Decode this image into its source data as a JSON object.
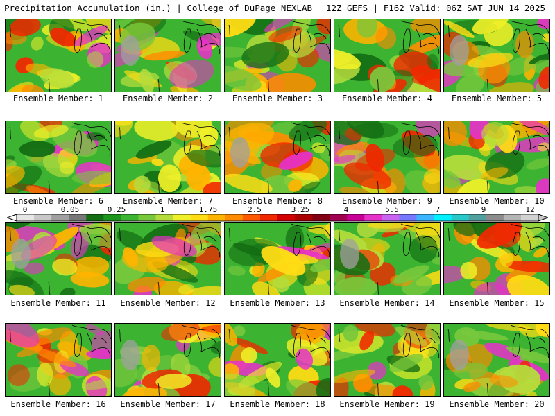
{
  "header": {
    "title": "Precipitation Accumulation (in.) | College of DuPage NEXLAB",
    "run_info": "12Z GEFS | F162 Valid: 06Z SAT JUN 14 2025"
  },
  "colorbar": {
    "tick_labels": [
      "0",
      "0.05",
      "0.25",
      "1",
      "1.75",
      "2.5",
      "3.25",
      "4",
      "5.5",
      "7",
      "9",
      "12"
    ],
    "colors": [
      "#e6e6e6",
      "#c8c8c8",
      "#a0a0a0",
      "#787878",
      "#146e14",
      "#1e961e",
      "#3cb432",
      "#78c83c",
      "#b4dc3c",
      "#f0f028",
      "#ffdc14",
      "#ffb400",
      "#ff8c00",
      "#ff5a00",
      "#f02800",
      "#d20000",
      "#aa0000",
      "#820014",
      "#a00050",
      "#c80096",
      "#e632c8",
      "#c864f0",
      "#7878ff",
      "#3cb4ff",
      "#00f0ff",
      "#28c8c8",
      "#50a0a0",
      "#8c8c8c",
      "#b4b4b4",
      "#d2d2d2"
    ]
  },
  "panels": [
    {
      "label": "Ensemble Member: 1"
    },
    {
      "label": "Ensemble Member: 2"
    },
    {
      "label": "Ensemble Member: 3"
    },
    {
      "label": "Ensemble Member: 4"
    },
    {
      "label": "Ensemble Member: 5"
    },
    {
      "label": "Ensemble Member: 6"
    },
    {
      "label": "Ensemble Member: 7"
    },
    {
      "label": "Ensemble Member: 8"
    },
    {
      "label": "Ensemble Member: 9"
    },
    {
      "label": "Ensemble Member: 10"
    },
    {
      "label": "Ensemble Member: 11"
    },
    {
      "label": "Ensemble Member: 12"
    },
    {
      "label": "Ensemble Member: 13"
    },
    {
      "label": "Ensemble Member: 14"
    },
    {
      "label": "Ensemble Member: 15"
    },
    {
      "label": "Ensemble Member: 16"
    },
    {
      "label": "Ensemble Member: 17"
    },
    {
      "label": "Ensemble Member: 18"
    },
    {
      "label": "Ensemble Member: 19"
    },
    {
      "label": "Ensemble Member: 20"
    }
  ]
}
